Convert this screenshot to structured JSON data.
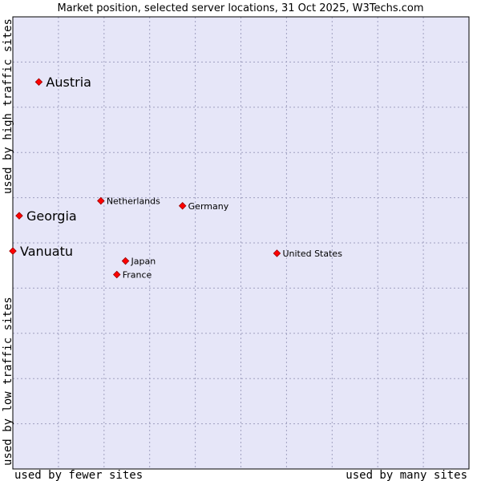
{
  "chart_data": {
    "type": "scatter",
    "title": "Market position, selected server locations, 31 Oct 2025, W3Techs.com",
    "xlabel_left": "used by fewer sites",
    "xlabel_right": "used by many sites",
    "ylabel_bottom": "used by low traffic sites",
    "ylabel_top": "used by high traffic sites",
    "xlim": [
      0,
      10
    ],
    "ylim": [
      0,
      10
    ],
    "grid": true,
    "colors": {
      "plot_bg": "#e6e6f8",
      "grid": "#a0a0c0",
      "point": "#ff0000",
      "point_outline": "#990000",
      "frame": "#000000"
    },
    "points": [
      {
        "name": "Austria",
        "x": 0.57,
        "y": 8.56,
        "emphasis": true
      },
      {
        "name": "Georgia",
        "x": 0.14,
        "y": 5.6,
        "emphasis": true
      },
      {
        "name": "Vanuatu",
        "x": 0.0,
        "y": 4.82,
        "emphasis": true
      },
      {
        "name": "Netherlands",
        "x": 1.93,
        "y": 5.93,
        "emphasis": false
      },
      {
        "name": "Germany",
        "x": 3.72,
        "y": 5.82,
        "emphasis": false
      },
      {
        "name": "United States",
        "x": 5.79,
        "y": 4.77,
        "emphasis": false
      },
      {
        "name": "Japan",
        "x": 2.47,
        "y": 4.6,
        "emphasis": false
      },
      {
        "name": "France",
        "x": 2.28,
        "y": 4.3,
        "emphasis": false
      }
    ]
  }
}
